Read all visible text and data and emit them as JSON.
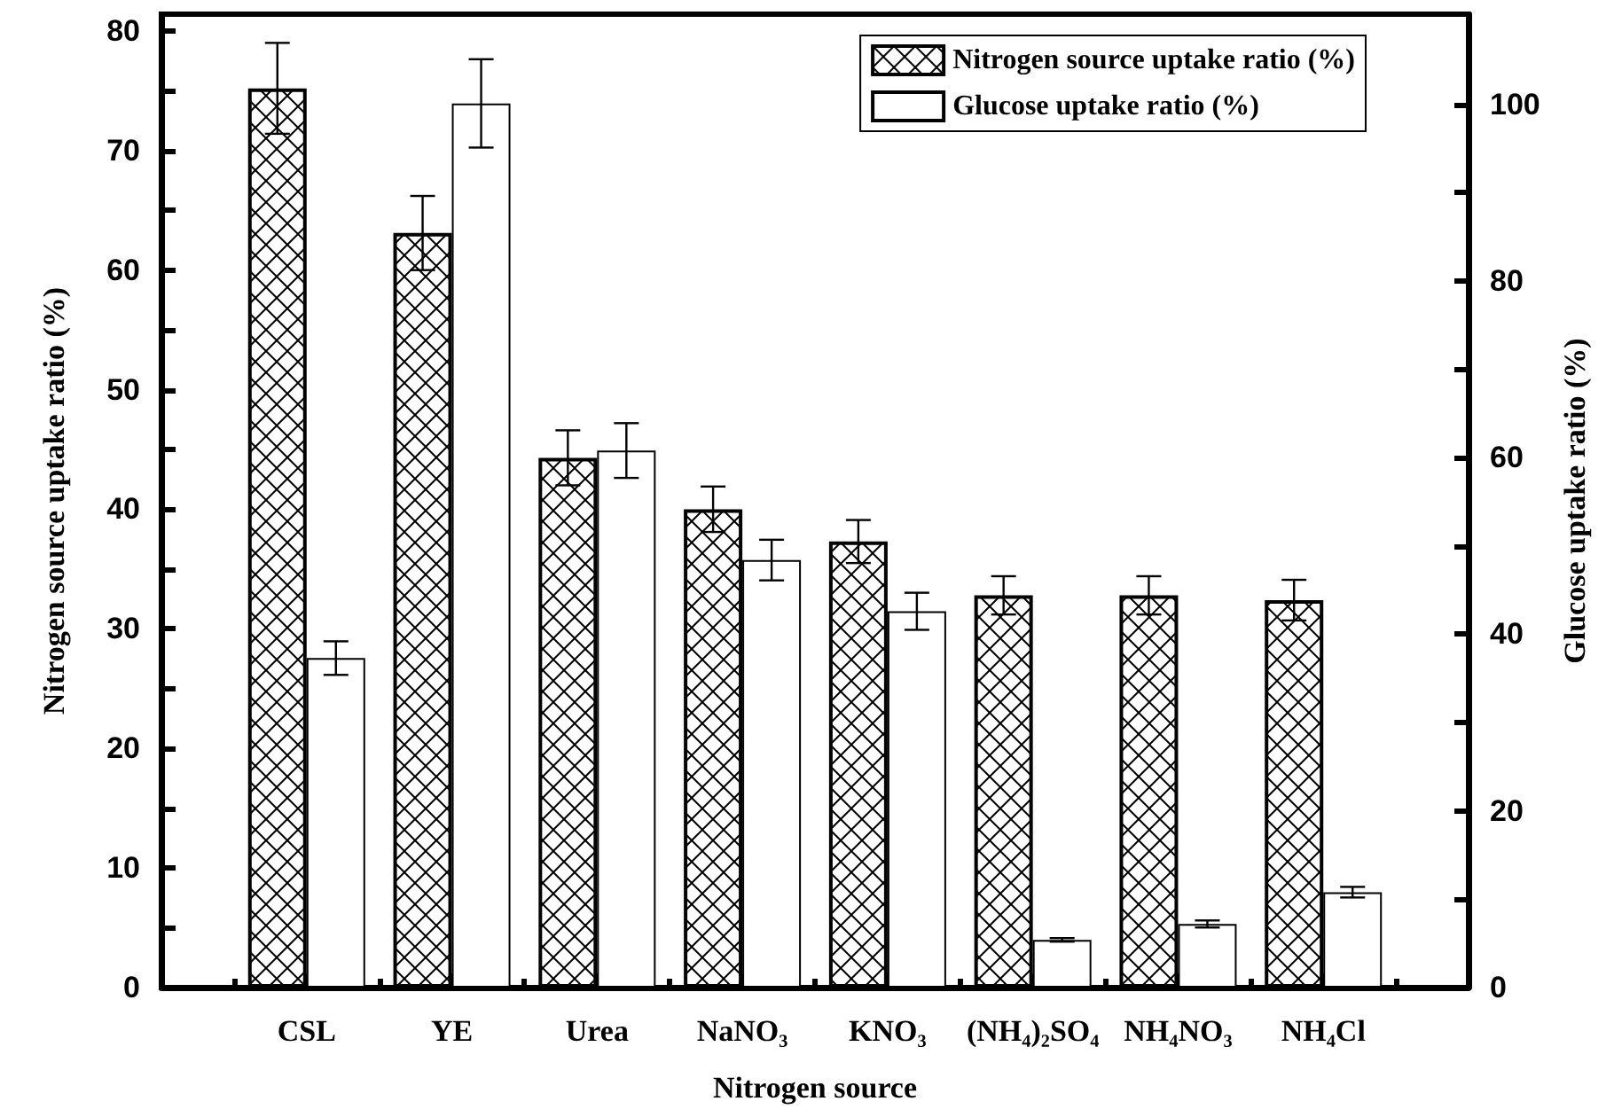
{
  "chart_data": {
    "type": "bar",
    "xlabel": "Nitrogen source",
    "ylabel": "Nitrogen source uptake ratio (%)",
    "y2label": "Glucose uptake ratio (%)",
    "categories": [
      "CSL",
      "YE",
      "Urea",
      "NaNO₃",
      "KNO₃",
      "(NH₄)₂SO₄",
      "NH₄NO₃",
      "NH₄Cl"
    ],
    "series": [
      {
        "name": "Nitrogen source uptake ratio (%)",
        "color": "#000000",
        "values": [
          75.2,
          63.1,
          44.3,
          40.0,
          37.3,
          32.8,
          32.8,
          32.4
        ],
        "errors": [
          3.8,
          3.1,
          2.3,
          1.9,
          1.8,
          1.6,
          1.6,
          1.7
        ]
      },
      {
        "name": "Glucose uptake ratio (%)",
        "color": "#ffffff",
        "axis": "y2",
        "values": [
          37.3,
          100.1,
          60.8,
          48.4,
          42.6,
          5.4,
          7.2,
          10.8
        ],
        "errors": [
          1.9,
          5.0,
          3.1,
          2.3,
          2.1,
          0.2,
          0.4,
          0.6
        ]
      }
    ],
    "ylim": [
      0,
      81.4
    ],
    "yticks": [
      0,
      {
        "value": 5,
        "label": null
      },
      10,
      {
        "value": 15,
        "label": null
      },
      20,
      {
        "value": 25,
        "label": null
      },
      30,
      {
        "value": 35,
        "label": null
      },
      40,
      {
        "value": 45,
        "label": null
      },
      50,
      {
        "value": 55,
        "label": null
      },
      60,
      {
        "value": 65,
        "label": null
      },
      70,
      {
        "value": 75,
        "label": null
      },
      80
    ],
    "y2lim": [
      0,
      110.2
    ],
    "y2ticks": [
      0,
      {
        "value": 10,
        "label": null
      },
      20,
      {
        "value": 30,
        "label": null
      },
      40,
      {
        "value": 50,
        "label": null
      },
      60,
      {
        "value": 70,
        "label": null
      },
      80,
      {
        "value": 90,
        "label": null
      },
      100
    ],
    "legend": "top right",
    "grid": false
  }
}
